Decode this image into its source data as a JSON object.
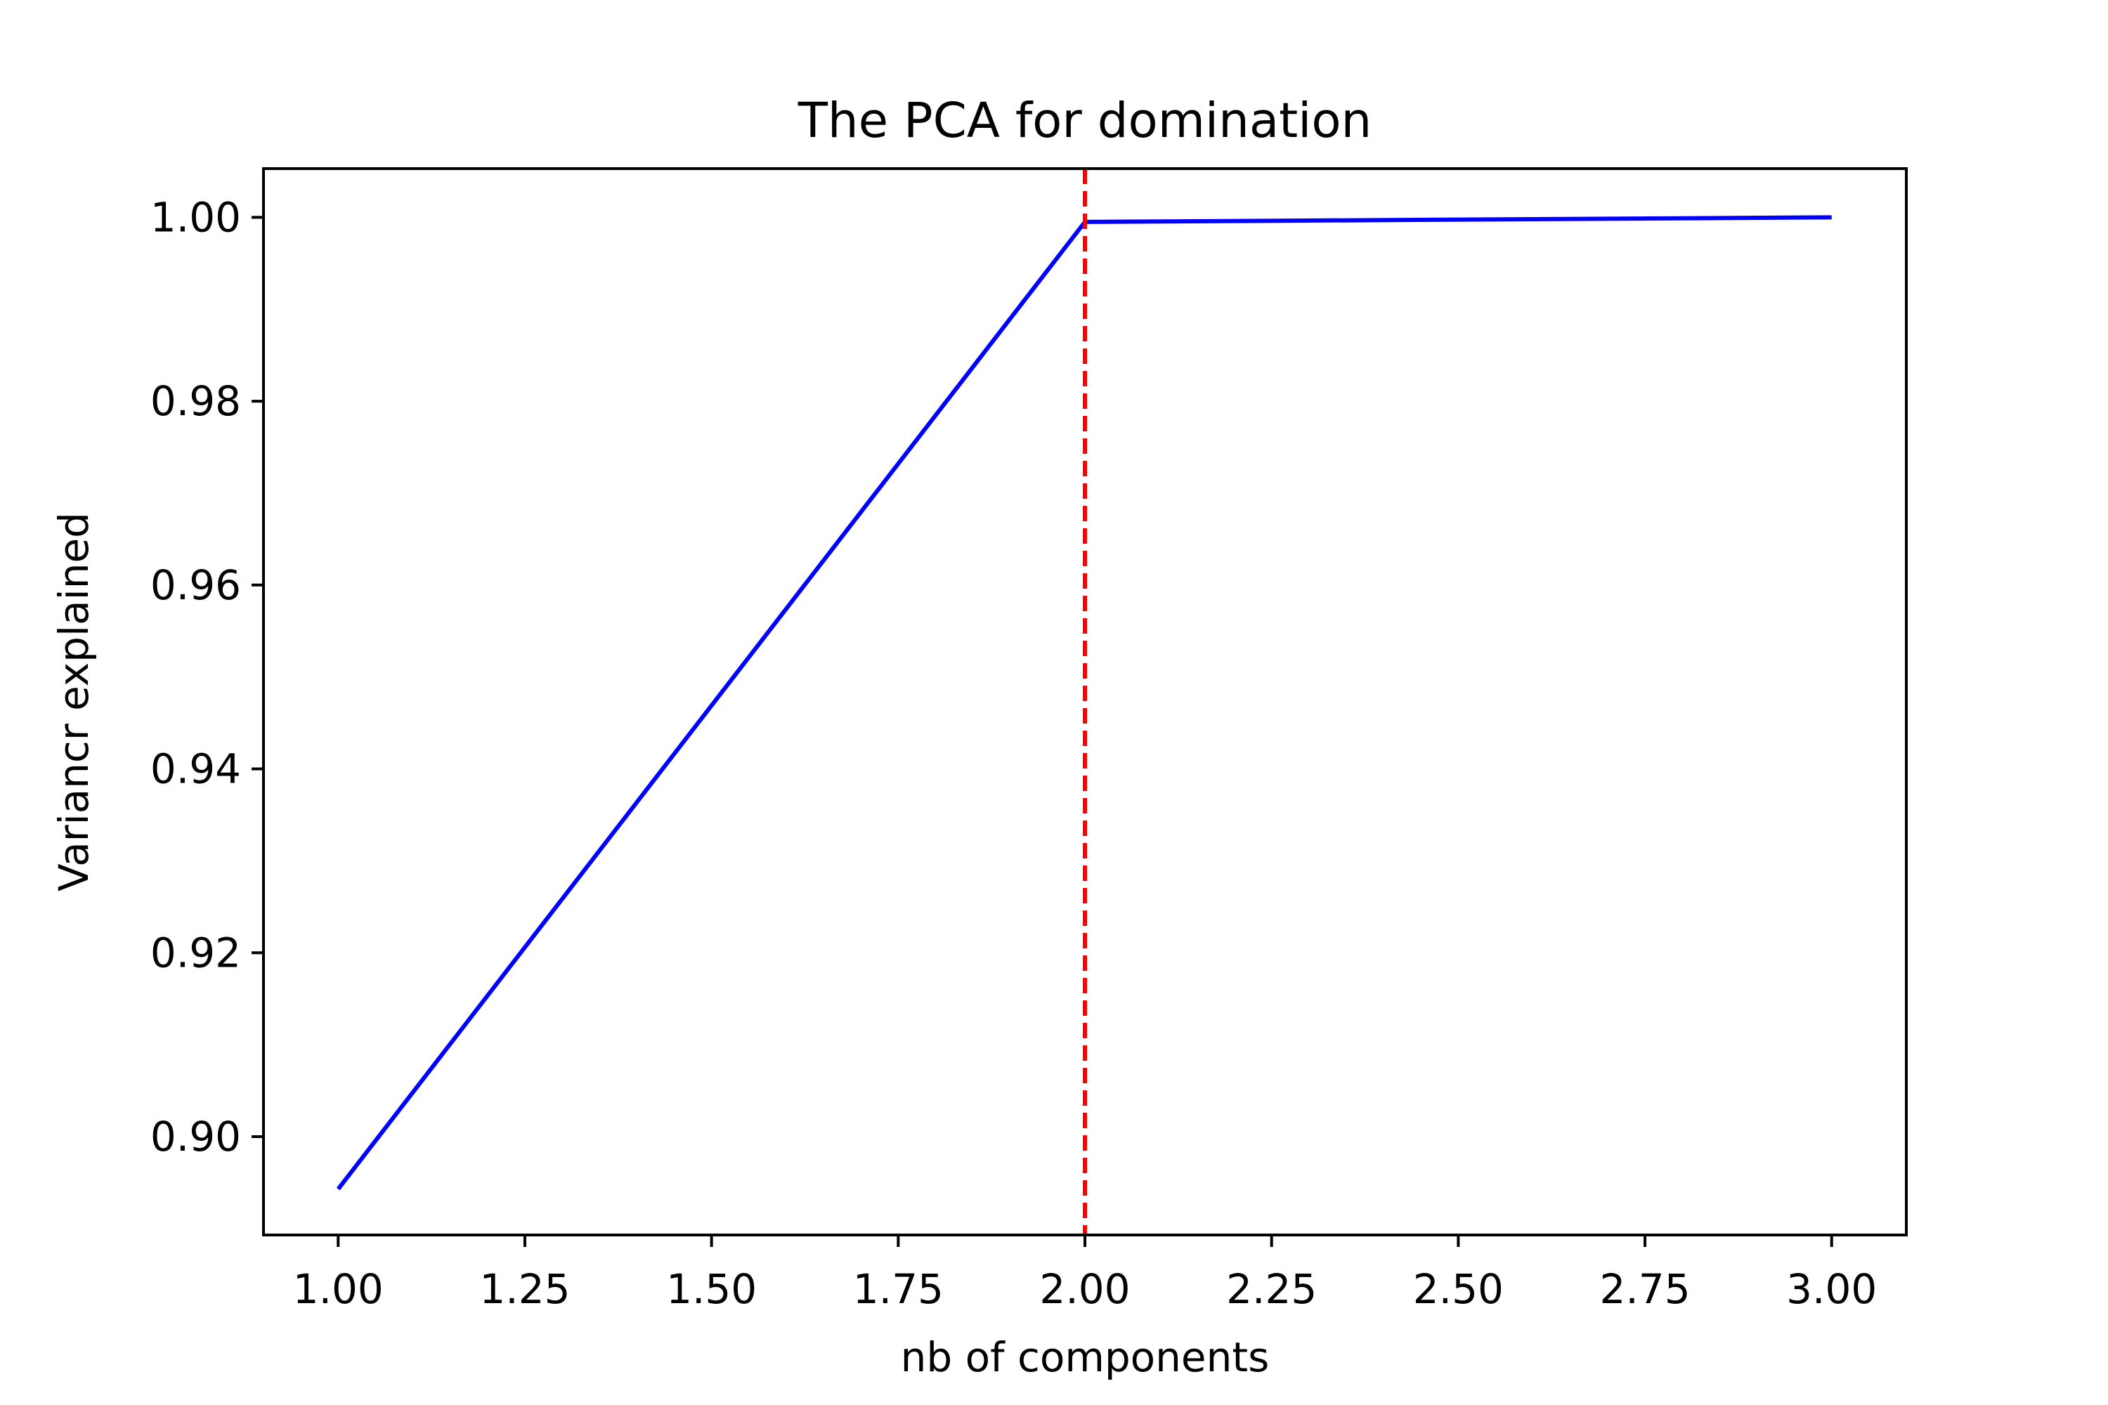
{
  "chart_data": {
    "type": "line",
    "title": "The PCA for domination",
    "xlabel": "nb of components",
    "ylabel": "Variancr explained",
    "xlim": [
      0.9,
      3.1
    ],
    "ylim": [
      0.8893,
      1.0053
    ],
    "grid": false,
    "x_ticks": [
      "1.00",
      "1.25",
      "1.50",
      "1.75",
      "2.00",
      "2.25",
      "2.50",
      "2.75",
      "3.00"
    ],
    "y_ticks": [
      "0.90",
      "0.92",
      "0.94",
      "0.96",
      "0.98",
      "1.00"
    ],
    "series": [
      {
        "x": [
          1,
          2,
          3
        ],
        "values": [
          0.8943,
          0.9995,
          1.0
        ],
        "color": "#0000ff",
        "style": "solid"
      }
    ],
    "reference_lines": [
      {
        "orientation": "vertical",
        "x": 2,
        "color": "#ff0000",
        "style": "dashed"
      }
    ]
  }
}
